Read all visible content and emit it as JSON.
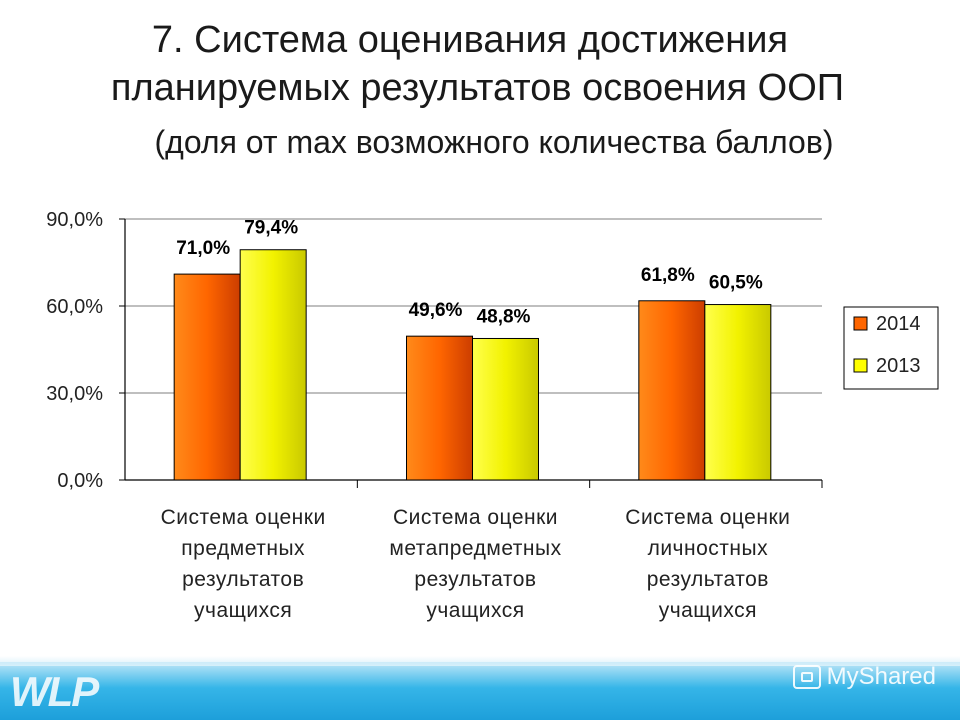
{
  "slide": {
    "title_line1": "7. Система оценивания достижения",
    "title_line2": "планируемых результатов освоения ООП",
    "subtitle": "(доля от max возможного количества баллов)",
    "watermark": "MyShared",
    "footer_logo": "WLP"
  },
  "chart_data": {
    "type": "bar",
    "categories": [
      [
        "Система оценки",
        "предметных",
        "результатов",
        "учащихся"
      ],
      [
        "Система оценки",
        "метапредметных",
        "результатов",
        "учащихся"
      ],
      [
        "Система оценки",
        "личностных",
        "результатов",
        "учащихся"
      ]
    ],
    "series": [
      {
        "name": "2014",
        "values": [
          71.0,
          49.6,
          61.8
        ],
        "labels": [
          "71,0%",
          "49,6%",
          "61,8%"
        ],
        "color": "#ff6600"
      },
      {
        "name": "2013",
        "values": [
          79.4,
          48.8,
          60.5
        ],
        "labels": [
          "79,4%",
          "48,8%",
          "60,5%"
        ],
        "color": "#ffff00"
      }
    ],
    "ylim": [
      0,
      90
    ],
    "yticks": [
      0,
      30,
      60,
      90
    ],
    "ytick_labels": [
      "0,0%",
      "30,0%",
      "60,0%",
      "90,0%"
    ],
    "grid": true,
    "legend_position": "right",
    "title": "",
    "xlabel": "",
    "ylabel": ""
  }
}
